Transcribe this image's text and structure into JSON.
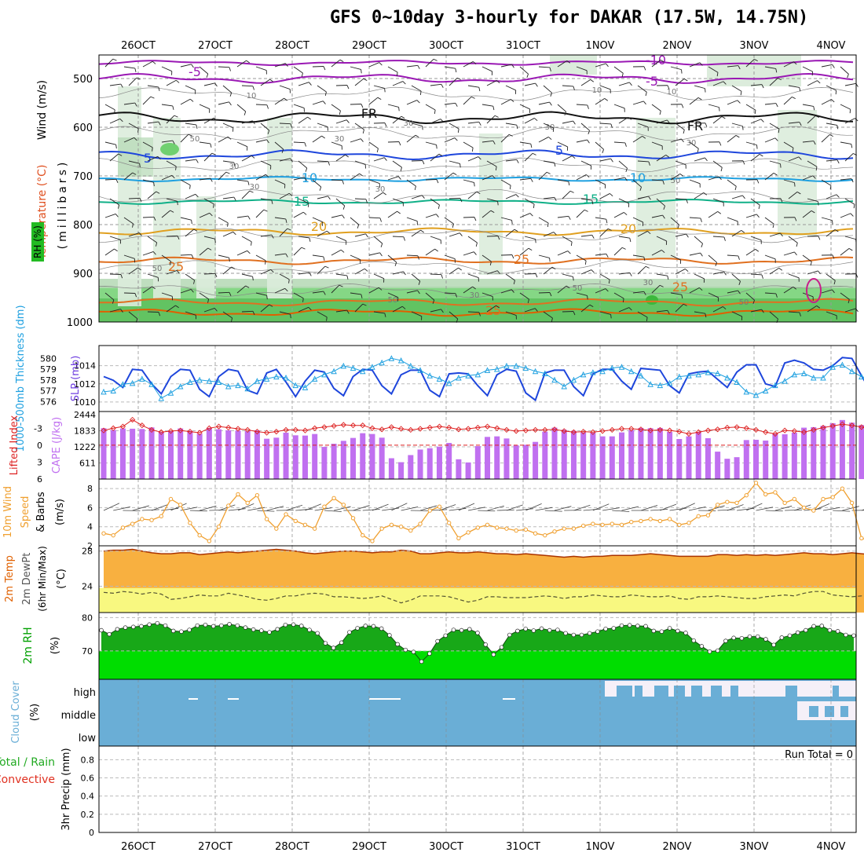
{
  "title": "GFS 0~10day 3-hourly for DAKAR (17.5W, 14.75N)",
  "dates": [
    "26OCT",
    "27OCT",
    "28OCT",
    "29OCT",
    "30OCT",
    "31OCT",
    "1NOV",
    "2NOV",
    "3NOV",
    "4NOV"
  ],
  "colors": {
    "purple": "#9a19b4",
    "black": "#111111",
    "blue": "#1e46dc",
    "lightblue": "#1ea0e0",
    "teal": "#10b088",
    "gold": "#e0a020",
    "orange": "#e07020",
    "darkorange": "#e06000",
    "rh_light": "#dcecdc",
    "rh_mid": "#b4d8b4",
    "rh_green": "#70d070",
    "cape": "#c070f0",
    "cloud": "#6aaed6",
    "wind10": "#f0a030",
    "temp_fill": "#f8b040",
    "dew_fill": "#f8f880",
    "rh2m": "#00cc00"
  },
  "upper": {
    "ylabel_wind": "Wind (m/s)",
    "ylabel_temp": "Temperature (°C)",
    "ylabel_rh": "RH (%)",
    "ylabel_p": "(millibars)",
    "pressure_ticks": [
      "500",
      "600",
      "700",
      "800",
      "900",
      "1000"
    ],
    "pressure_values": [
      500,
      600,
      700,
      800,
      900,
      1000
    ],
    "isotherm_labels": [
      {
        "text": "-10",
        "color": "purple"
      },
      {
        "text": "-5",
        "color": "purple"
      },
      {
        "text": "-5",
        "color": "purple"
      },
      {
        "text": "FR",
        "color": "black"
      },
      {
        "text": "FR",
        "color": "black"
      },
      {
        "text": "5",
        "color": "blue"
      },
      {
        "text": "5",
        "color": "blue"
      },
      {
        "text": "10",
        "color": "lightblue"
      },
      {
        "text": "10",
        "color": "lightblue"
      },
      {
        "text": "15",
        "color": "teal"
      },
      {
        "text": "15",
        "color": "teal"
      },
      {
        "text": "20",
        "color": "gold"
      },
      {
        "text": "20",
        "color": "gold"
      },
      {
        "text": "25",
        "color": "orange"
      },
      {
        "text": "25",
        "color": "orange"
      },
      {
        "text": "25",
        "color": "orange"
      },
      {
        "text": "25",
        "color": "orange"
      }
    ],
    "rh_labels": [
      "50",
      "30",
      "30",
      "30",
      "30",
      "50",
      "30",
      "30",
      "30",
      "50",
      "50",
      "30",
      "30",
      "50",
      "10",
      "10",
      "10",
      "50"
    ]
  },
  "chart_data": [
    {
      "type": "line",
      "name": "thickness_slp",
      "ylabel_left": "1000-500mb Thickness (dm)",
      "ylabel_right": "SLP (mb)",
      "left_ticks": [
        "580",
        "579",
        "578",
        "577",
        "576"
      ],
      "right_ticks": [
        "1014",
        "1012",
        "1010"
      ],
      "ylim_thickness": [
        575.8,
        580.6
      ],
      "ylim_slp": [
        1009.3,
        1015.7
      ],
      "series": [
        {
          "name": "SLP (mb)",
          "color": "blue",
          "values": [
            1012.8,
            1012.4,
            1011.6,
            1013.6,
            1013.5,
            1012.0,
            1010.9,
            1012.8,
            1013.6,
            1013.5,
            1011.4,
            1010.6,
            1012.8,
            1013.6,
            1013.4,
            1011.3,
            1010.9,
            1013.2,
            1013.6,
            1012.2,
            1010.6,
            1012.3,
            1013.5,
            1013.3,
            1011.5,
            1010.7,
            1012.8,
            1013.6,
            1013.5,
            1011.8,
            1010.9,
            1013.0,
            1013.5,
            1013.5,
            1011.3,
            1010.6,
            1013.1,
            1013.2,
            1013.1,
            1011.8,
            1010.7,
            1013.0,
            1013.6,
            1013.4,
            1011.0,
            1010.2,
            1013.2,
            1013.5,
            1013.5,
            1011.7,
            1010.7,
            1013.1,
            1013.6,
            1013.6,
            1012.3,
            1011.4,
            1013.7,
            1013.6,
            1013.5,
            1011.8,
            1011.0,
            1013.1,
            1013.3,
            1013.4,
            1012.5,
            1011.6,
            1013.3,
            1014.1,
            1014.1,
            1012.0,
            1011.7,
            1014.3,
            1014.6,
            1014.3,
            1013.6,
            1013.5,
            1014.0,
            1014.9,
            1014.8,
            1012.9,
            1011.1,
            1012.9,
            1013.6,
            1013.5,
            1012.7,
            1010.4,
            1012.6,
            1011.8,
            1011.9,
            1012.4,
            1010.9
          ]
        },
        {
          "name": "1000-500mb Thickness (dm)",
          "color": "lightblue",
          "values": [
            576.9,
            577.0,
            577.6,
            577.7,
            578.1,
            577.6,
            576.3,
            576.8,
            577.4,
            577.8,
            578.0,
            577.9,
            577.8,
            577.4,
            577.5,
            577.2,
            577.9,
            578.1,
            578.3,
            578.2,
            577.5,
            577.3,
            578.1,
            578.5,
            578.8,
            579.3,
            579.1,
            578.8,
            579.2,
            579.6,
            580.0,
            579.8,
            579.3,
            578.9,
            578.4,
            578.1,
            577.7,
            578.2,
            578.4,
            578.5,
            578.9,
            579.0,
            579.3,
            579.3,
            579.1,
            578.8,
            578.6,
            578.0,
            577.4,
            578.0,
            578.5,
            578.7,
            578.8,
            579.1,
            579.2,
            578.8,
            578.4,
            577.6,
            577.5,
            577.7,
            578.3,
            578.4,
            578.5,
            578.7,
            578.6,
            578.2,
            577.8,
            576.9,
            576.6,
            577.0,
            577.5,
            577.9,
            578.5,
            578.6,
            578.2,
            578.2,
            579.2,
            579.4,
            578.8,
            578.3,
            578.1,
            578.3,
            578.6,
            578.7,
            578.6,
            578.3,
            578.3,
            578.7,
            579.1,
            578.7,
            578.3
          ]
        }
      ]
    },
    {
      "type": "bar+line",
      "name": "cape_li",
      "ylabel_left": "Lifted Index",
      "ylabel_right": "CAPE (J/kg)",
      "left_ticks": [
        "-3",
        "0",
        "3",
        "6"
      ],
      "right_ticks": [
        "2444",
        "1833",
        "1222",
        "611"
      ],
      "ylim_li": [
        6,
        -5.4
      ],
      "ylim_cape": [
        0,
        2444
      ],
      "series": [
        {
          "name": "CAPE (J/kg)",
          "color": "cape",
          "values": [
            1930,
            1860,
            1920,
            1910,
            1900,
            1960,
            1790,
            1830,
            1920,
            1830,
            1720,
            1940,
            1890,
            1850,
            1840,
            1820,
            1850,
            1530,
            1570,
            1760,
            1660,
            1650,
            1710,
            1220,
            1340,
            1450,
            1560,
            1740,
            1710,
            1570,
            790,
            640,
            910,
            1120,
            1170,
            1230,
            1370,
            750,
            630,
            1250,
            1600,
            1620,
            1540,
            1280,
            1300,
            1410,
            1800,
            1950,
            1870,
            1830,
            1770,
            1760,
            1620,
            1620,
            1770,
            1860,
            1940,
            1930,
            1940,
            1790,
            1520,
            1620,
            1780,
            1550,
            1040,
            770,
            830,
            1480,
            1490,
            1460,
            1720,
            1700,
            1760,
            1950,
            1970,
            2020,
            2120,
            2240,
            2140,
            2050,
            1940,
            1920,
            1900,
            1880
          ]
        },
        {
          "name": "Lifted Index",
          "color": "red",
          "values": [
            -2.6,
            -3.0,
            -3.3,
            -4.5,
            -3.5,
            -2.7,
            -2.3,
            -2.5,
            -2.6,
            -2.4,
            -2.2,
            -3.0,
            -3.3,
            -3.1,
            -2.9,
            -2.7,
            -2.4,
            -2.2,
            -2.4,
            -2.7,
            -2.7,
            -2.6,
            -3.0,
            -3.2,
            -3.4,
            -3.6,
            -3.5,
            -3.5,
            -3.0,
            -2.8,
            -3.2,
            -2.9,
            -2.7,
            -2.9,
            -3.1,
            -3.3,
            -3.1,
            -2.8,
            -2.9,
            -3.1,
            -3.3,
            -3.0,
            -2.7,
            -2.5,
            -2.6,
            -2.7,
            -2.7,
            -2.8,
            -2.5,
            -2.3,
            -2.4,
            -2.3,
            -2.5,
            -2.7,
            -2.9,
            -2.9,
            -2.8,
            -2.6,
            -2.7,
            -2.6,
            -2.4,
            -2.0,
            -2.3,
            -2.6,
            -2.8,
            -3.1,
            -3.2,
            -3.0,
            -2.7,
            -2.3,
            -2.0,
            -2.6,
            -2.5,
            -2.3,
            -2.7,
            -3.1,
            -3.4,
            -3.7,
            -3.5,
            -3.2,
            -2.8,
            -2.5,
            -2.6
          ]
        }
      ]
    },
    {
      "type": "line",
      "name": "wind10m",
      "ylabel": "10m Wind Speed & Barbs (m/s)",
      "ticks": [
        "8",
        "6",
        "4",
        "2"
      ],
      "ylim": [
        2,
        9
      ],
      "series": [
        {
          "name": "10m Wind Speed",
          "color": "wind10",
          "values": [
            3.3,
            3.1,
            3.9,
            4.3,
            4.8,
            4.7,
            5.1,
            6.9,
            6.3,
            4.4,
            3.1,
            2.5,
            4.0,
            6.2,
            7.4,
            6.5,
            7.3,
            4.8,
            3.8,
            5.3,
            4.6,
            4.2,
            3.8,
            6.1,
            7.0,
            6.3,
            4.9,
            3.1,
            2.5,
            3.8,
            4.2,
            4.0,
            3.6,
            4.3,
            5.7,
            6.1,
            4.4,
            2.8,
            3.4,
            3.9,
            4.2,
            3.9,
            3.8,
            3.6,
            3.7,
            3.3,
            3.1,
            3.5,
            3.8,
            3.8,
            4.1,
            4.3,
            4.2,
            4.3,
            4.2,
            4.5,
            4.6,
            4.8,
            4.6,
            4.8,
            4.2,
            4.4,
            5.1,
            5.2,
            6.3,
            6.6,
            6.5,
            7.3,
            8.6,
            7.4,
            7.6,
            6.5,
            6.9,
            6.0,
            5.7,
            6.9,
            7.1,
            8.0,
            6.5,
            2.8,
            2.5,
            3.1,
            3.9
          ]
        }
      ]
    },
    {
      "type": "area",
      "name": "temp2m",
      "ylabel": "2m Temp 2m DewPt (6hr Min/Max) (°C)",
      "ticks": [
        "28",
        "24"
      ],
      "ylim": [
        21.0,
        28.6
      ],
      "series": [
        {
          "name": "2m Temp",
          "color": "orange",
          "values": [
            28.0,
            28.1,
            28.1,
            28.2,
            28.0,
            27.8,
            27.7,
            27.7,
            27.8,
            27.8,
            27.6,
            27.7,
            27.8,
            27.9,
            27.8,
            27.9,
            28.0,
            28.1,
            28.2,
            28.1,
            28.0,
            27.8,
            27.7,
            27.8,
            27.9,
            28.0,
            28.0,
            27.9,
            27.8,
            27.9,
            27.9,
            28.1,
            28.0,
            27.7,
            27.7,
            27.8,
            27.9,
            27.8,
            27.8,
            27.9,
            27.8,
            27.7,
            27.7,
            27.6,
            27.7,
            27.6,
            27.5,
            27.4,
            27.3,
            27.4,
            27.3,
            27.4,
            27.4,
            27.5,
            27.5,
            27.5,
            27.6,
            27.7,
            27.6,
            27.5,
            27.4,
            27.4,
            27.4,
            27.4,
            27.6,
            27.6,
            27.5,
            27.6,
            27.5,
            27.6,
            27.5,
            27.6,
            27.7,
            27.8,
            27.7,
            27.7,
            27.6,
            27.7,
            27.8,
            27.7,
            27.6,
            27.6,
            27.6
          ]
        },
        {
          "name": "2m DewPt",
          "color": "black",
          "values": [
            23.3,
            23.2,
            23.4,
            23.3,
            23.1,
            23.3,
            23.1,
            22.5,
            22.6,
            22.8,
            23.0,
            22.9,
            22.9,
            23.2,
            23.0,
            22.8,
            22.5,
            22.4,
            22.6,
            22.9,
            22.9,
            23.1,
            23.2,
            23.1,
            22.8,
            22.8,
            22.7,
            22.6,
            22.7,
            22.9,
            22.5,
            22.1,
            22.4,
            22.9,
            22.9,
            22.9,
            22.8,
            22.5,
            22.2,
            22.4,
            22.8,
            22.8,
            22.7,
            22.7,
            22.7,
            22.8,
            22.9,
            22.8,
            22.6,
            22.8,
            22.8,
            23.0,
            22.9,
            22.8,
            22.8,
            23.0,
            22.9,
            22.8,
            22.8,
            22.9,
            22.6,
            22.5,
            22.8,
            22.8,
            22.9,
            22.8,
            22.7,
            22.6,
            22.6,
            22.8,
            22.9,
            23.0,
            22.9,
            23.2,
            23.4,
            23.4,
            23.0,
            22.9,
            22.8,
            22.9,
            22.8,
            22.7,
            22.6
          ]
        }
      ]
    },
    {
      "type": "area",
      "name": "rh2m",
      "ylabel": "2m RH (%)",
      "ticks": [
        "80",
        "70"
      ],
      "ylim": [
        61.5,
        81.5
      ],
      "series": [
        {
          "name": "2m RH",
          "color": "rh2m",
          "values": [
            76.2,
            75.0,
            76.5,
            77.0,
            77.2,
            77.4,
            77.9,
            78.3,
            77.6,
            76.0,
            75.8,
            76.3,
            77.6,
            77.8,
            77.4,
            77.6,
            78.0,
            77.6,
            77.0,
            76.4,
            76.1,
            75.6,
            76.5,
            77.8,
            77.9,
            77.5,
            76.3,
            75.3,
            72.3,
            70.9,
            72.5,
            75.6,
            76.8,
            77.5,
            77.4,
            76.7,
            74.7,
            72.0,
            70.3,
            69.7,
            66.8,
            69.2,
            72.9,
            74.6,
            76.3,
            76.2,
            76.5,
            75.4,
            71.9,
            68.9,
            71.1,
            74.8,
            76.0,
            76.6,
            76.1,
            76.7,
            76.2,
            76.3,
            75.3,
            74.8,
            74.8,
            75.3,
            75.8,
            76.6,
            76.8,
            77.6,
            77.7,
            77.5,
            77.4,
            76.0,
            75.8,
            76.8,
            76.0,
            75.4,
            73.1,
            71.4,
            69.8,
            70.1,
            73.0,
            73.9,
            73.8,
            74.3,
            74.3,
            73.5,
            71.8,
            74.0,
            74.6,
            75.5,
            76.2,
            77.4,
            77.5,
            76.2,
            75.9,
            74.8,
            74.6
          ]
        }
      ]
    },
    {
      "type": "heatmap",
      "name": "cloud",
      "ylabel": "Cloud Cover (%)",
      "row_labels": [
        "high",
        "middle",
        "low"
      ]
    },
    {
      "type": "bar",
      "name": "precip",
      "ylabel": "3hr Precip (mm)",
      "legend": [
        "Total / Rain",
        "Convective"
      ],
      "ticks": [
        "0.8",
        "0.6",
        "0.4",
        "0.2",
        "0"
      ],
      "ylim": [
        0,
        0.95
      ],
      "annotation": "Run Total = 0",
      "values": []
    }
  ]
}
